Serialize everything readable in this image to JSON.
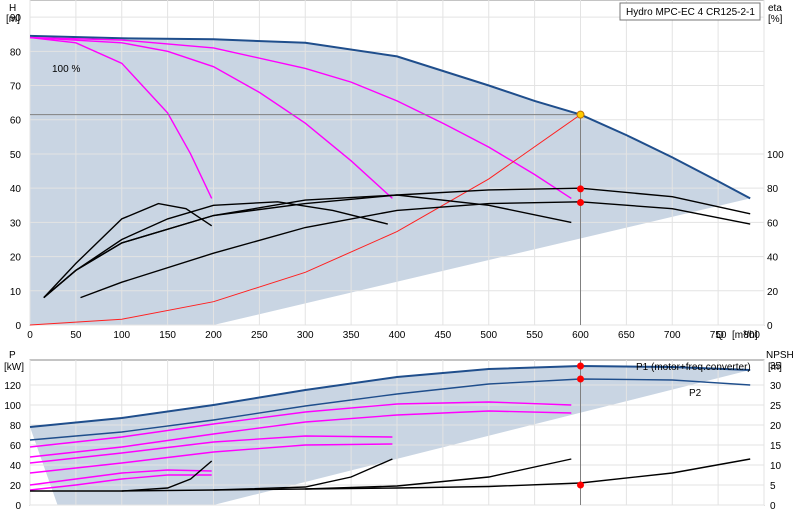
{
  "chart_data": [
    {
      "type": "line",
      "title": "Hydro MPC-EC 4 CR125-2-1",
      "ylabel": "H",
      "yunit": "[m]",
      "y2label": "eta",
      "y2unit": "[%]",
      "xlabel": "Q",
      "xunit": "[m³/h]",
      "xlim": [
        0,
        800
      ],
      "ylim": [
        0,
        95
      ],
      "xticks": [
        "0",
        "50",
        "100",
        "150",
        "200",
        "250",
        "300",
        "350",
        "400",
        "450",
        "500",
        "550",
        "600",
        "650",
        "700",
        "750",
        "800"
      ],
      "yticks": [
        "0",
        "10",
        "20",
        "30",
        "40",
        "50",
        "60",
        "70",
        "80",
        "90"
      ],
      "y2ticks": [
        "0",
        "20",
        "40",
        "60",
        "80",
        "100"
      ],
      "speed_label": "100 %",
      "duty_point": {
        "q": 600,
        "h": 61.5
      },
      "series": [
        {
          "role": "qh-max",
          "color": "#1f4e8c",
          "x": [
            0,
            100,
            200,
            300,
            400,
            500,
            550,
            600,
            650,
            700,
            750,
            785
          ],
          "y": [
            84.5,
            83.8,
            83.5,
            82.5,
            78.5,
            70,
            65.5,
            61.5,
            55.5,
            49,
            42,
            37
          ]
        },
        {
          "role": "qh-3pumps",
          "color": "#ff00ff",
          "x": [
            0,
            100,
            200,
            300,
            350,
            400,
            450,
            500,
            550,
            590
          ],
          "y": [
            84,
            83.3,
            81,
            75,
            71,
            65.5,
            59,
            52,
            44,
            37
          ]
        },
        {
          "role": "qh-2pumps",
          "color": "#ff00ff",
          "x": [
            0,
            100,
            150,
            200,
            250,
            300,
            350,
            395
          ],
          "y": [
            84,
            82.5,
            80,
            75.5,
            68,
            59,
            48,
            37
          ]
        },
        {
          "role": "qh-1pump",
          "color": "#ff00ff",
          "x": [
            0,
            50,
            100,
            150,
            175,
            198
          ],
          "y": [
            84,
            82.5,
            76.5,
            62,
            50,
            37
          ]
        },
        {
          "role": "system-curve",
          "color": "#ff2020",
          "x": [
            0,
            100,
            200,
            300,
            400,
            500,
            600
          ],
          "y": [
            0,
            1.7,
            6.8,
            15.4,
            27.3,
            42.7,
            61.5
          ]
        },
        {
          "role": "eta-max",
          "color": "#000000",
          "x": [
            15,
            50,
            100,
            200,
            300,
            400,
            500,
            600,
            700,
            785
          ],
          "y": [
            8,
            16,
            24,
            32,
            35.5,
            38,
            39.5,
            40,
            37.5,
            32.5
          ]
        },
        {
          "role": "eta-3pumps",
          "color": "#000000",
          "x": [
            15,
            50,
            100,
            200,
            300,
            400,
            500,
            590
          ],
          "y": [
            8,
            16,
            24,
            32,
            36.5,
            38,
            35,
            30
          ]
        },
        {
          "role": "eta-2pumps",
          "color": "#000000",
          "x": [
            15,
            50,
            100,
            150,
            200,
            270,
            330,
            390
          ],
          "y": [
            8,
            16,
            25,
            31,
            35,
            36,
            33.5,
            29.5
          ]
        },
        {
          "role": "eta-1pump",
          "color": "#000000",
          "x": [
            15,
            50,
            100,
            140,
            170,
            198
          ],
          "y": [
            8,
            18,
            31,
            35.5,
            34,
            29
          ]
        },
        {
          "role": "eta-op",
          "color": "#000000",
          "x": [
            55,
            100,
            200,
            300,
            400,
            500,
            600,
            700,
            785
          ],
          "y": [
            8,
            12.5,
            21,
            28.5,
            33.5,
            35.5,
            36,
            34,
            29.5
          ]
        }
      ],
      "markers": [
        {
          "x": 600,
          "y": 61.5,
          "color": "#ffcc00"
        },
        {
          "x": 600,
          "y": 39.8,
          "color": "#ff0000"
        },
        {
          "x": 600,
          "y": 35.8,
          "color": "#ff0000"
        }
      ]
    },
    {
      "type": "line",
      "ylabel": "P",
      "yunit": "[kW]",
      "y2label": "NPSH",
      "y2unit": "[m]",
      "xlim": [
        0,
        800
      ],
      "ylim": [
        0,
        145
      ],
      "yticks": [
        "0",
        "20",
        "40",
        "60",
        "80",
        "100",
        "120"
      ],
      "y2ticks": [
        "0",
        "5",
        "10",
        "15",
        "20",
        "25",
        "30",
        "35"
      ],
      "series": [
        {
          "name": "P1 (motor+freq.converter)",
          "color": "#1f4e8c",
          "x": [
            0,
            100,
            200,
            300,
            400,
            500,
            600,
            700,
            785
          ],
          "y": [
            78,
            87,
            100,
            115,
            128,
            136,
            139,
            138,
            135
          ]
        },
        {
          "name": "P2",
          "color": "#1f4e8c",
          "x": [
            0,
            100,
            200,
            300,
            400,
            500,
            600,
            700,
            785
          ],
          "y": [
            65,
            73,
            85,
            99,
            111,
            121,
            126,
            125,
            120
          ]
        },
        {
          "role": "p-3pumps-a",
          "color": "#ff00ff",
          "x": [
            0,
            100,
            200,
            300,
            400,
            500,
            590
          ],
          "y": [
            58,
            68,
            81,
            93,
            101,
            103,
            100
          ]
        },
        {
          "role": "p-3pumps-b",
          "color": "#ff00ff",
          "x": [
            0,
            100,
            200,
            300,
            400,
            500,
            590
          ],
          "y": [
            48,
            58,
            71,
            83,
            90,
            94,
            92
          ]
        },
        {
          "role": "p-2pumps-a",
          "color": "#ff00ff",
          "x": [
            0,
            100,
            200,
            300,
            395
          ],
          "y": [
            42,
            52,
            63,
            69,
            68
          ]
        },
        {
          "role": "p-2pumps-b",
          "color": "#ff00ff",
          "x": [
            0,
            100,
            200,
            300,
            395
          ],
          "y": [
            32,
            42,
            53,
            60,
            61
          ]
        },
        {
          "role": "p-1pump-a",
          "color": "#ff00ff",
          "x": [
            0,
            50,
            100,
            150,
            198
          ],
          "y": [
            20,
            26,
            32,
            35,
            34
          ]
        },
        {
          "role": "p-1pump-b",
          "color": "#ff00ff",
          "x": [
            0,
            50,
            100,
            150,
            198
          ],
          "y": [
            15,
            20,
            26,
            30,
            30
          ]
        },
        {
          "role": "npsh",
          "color": "#000000",
          "x": [
            0,
            100,
            200,
            300,
            400,
            500,
            600,
            700,
            785
          ],
          "y": [
            14,
            14,
            15,
            16,
            17,
            18.5,
            22,
            32,
            46
          ]
        },
        {
          "role": "npsh-1pump",
          "color": "#000000",
          "x": [
            100,
            150,
            175,
            198
          ],
          "y": [
            14,
            17,
            26,
            44
          ]
        },
        {
          "role": "npsh-2pumps",
          "color": "#000000",
          "x": [
            200,
            300,
            350,
            395
          ],
          "y": [
            15,
            18,
            28,
            46
          ]
        },
        {
          "role": "npsh-3pumps",
          "color": "#000000",
          "x": [
            300,
            400,
            500,
            590
          ],
          "y": [
            16,
            19,
            28,
            46
          ]
        }
      ],
      "markers": [
        {
          "x": 600,
          "y": 139,
          "color": "#ff0000"
        },
        {
          "x": 600,
          "y": 126,
          "color": "#ff0000"
        },
        {
          "x": 600,
          "y": 20,
          "color": "#ff0000"
        }
      ]
    }
  ]
}
